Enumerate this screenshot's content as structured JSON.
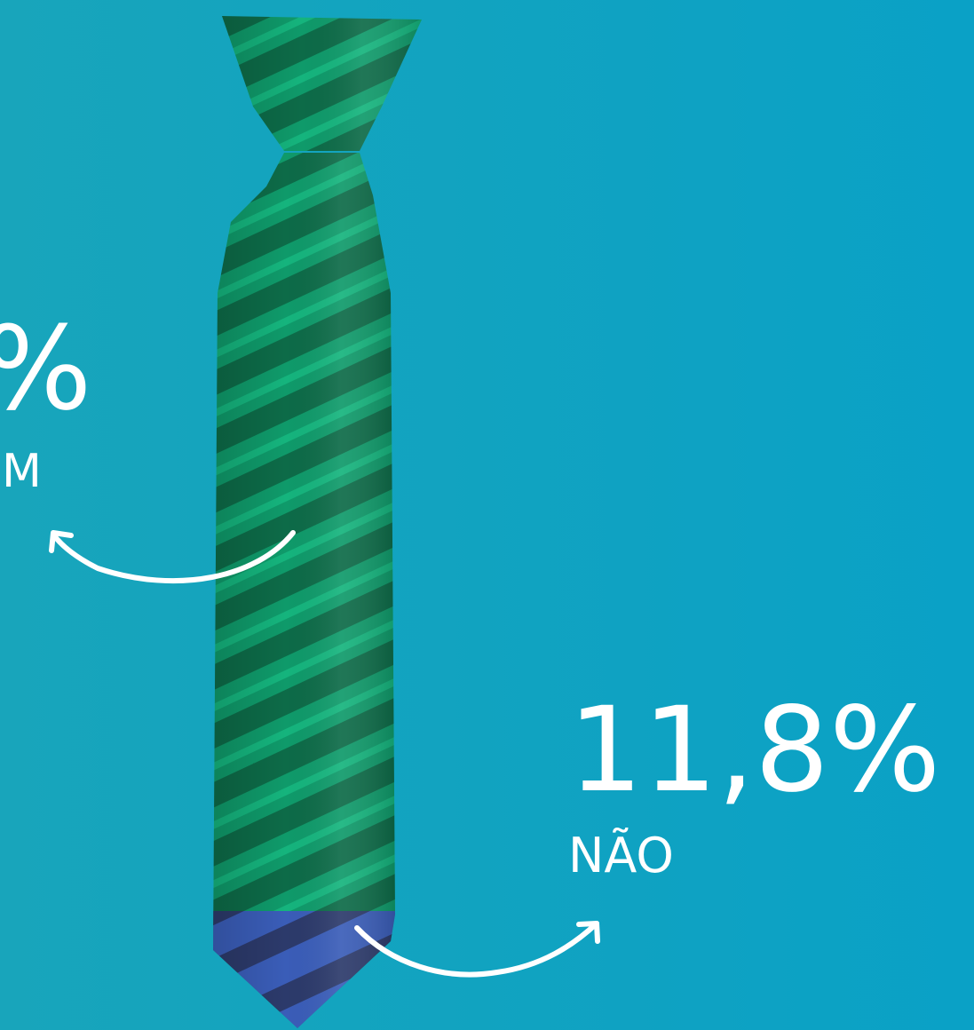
{
  "left_label": {
    "value": "%",
    "caption": "M"
  },
  "right_label": {
    "value": "11,8%",
    "caption": "NÃO"
  }
}
